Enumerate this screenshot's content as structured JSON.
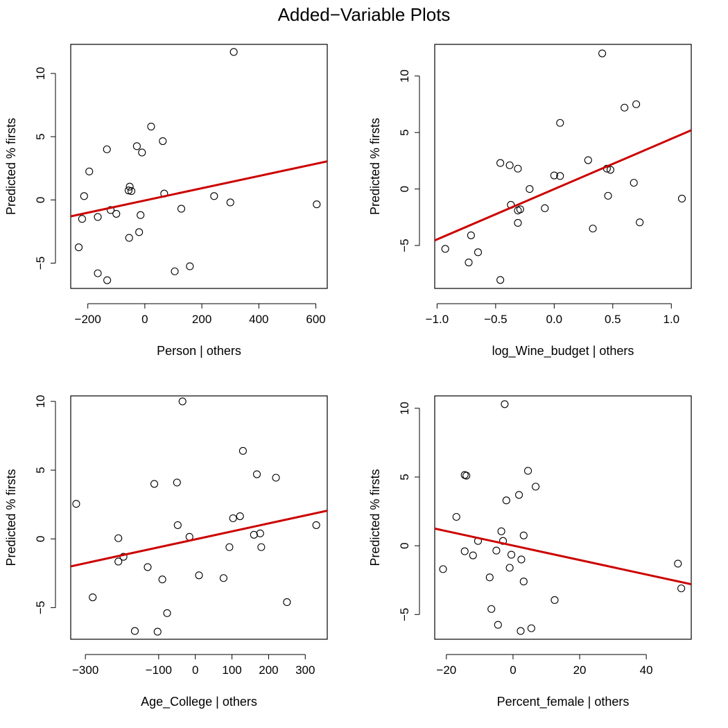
{
  "title": "Added−Variable Plots",
  "colors": {
    "fit_line": "#cc0000",
    "points": "#000000",
    "frame": "#000000"
  },
  "chart_data": [
    {
      "type": "scatter",
      "xlabel": "Person | others",
      "ylabel": "Predicted % firsts",
      "xlim": [
        -260,
        640
      ],
      "ylim": [
        -7.0,
        12.3
      ],
      "xticks": [
        -200,
        0,
        200,
        400,
        600
      ],
      "xtick_labels": [
        "−200",
        "0",
        "200",
        "400",
        "600"
      ],
      "yticks": [
        -5,
        0,
        5,
        10
      ],
      "ytick_labels": [
        "−5",
        "0",
        "5",
        "10"
      ],
      "points": [
        [
          312,
          11.7
        ],
        [
          22,
          5.8
        ],
        [
          -133,
          4.0
        ],
        [
          -28,
          4.25
        ],
        [
          63,
          4.65
        ],
        [
          -10,
          3.75
        ],
        [
          -195,
          2.25
        ],
        [
          -213,
          0.3
        ],
        [
          -53,
          1.05
        ],
        [
          -57,
          0.75
        ],
        [
          -47,
          0.7
        ],
        [
          68,
          0.5
        ],
        [
          243,
          0.3
        ],
        [
          300,
          -0.2
        ],
        [
          603,
          -0.35
        ],
        [
          -120,
          -0.8
        ],
        [
          128,
          -0.7
        ],
        [
          -100,
          -1.1
        ],
        [
          -15,
          -1.2
        ],
        [
          -165,
          -1.35
        ],
        [
          -220,
          -1.5
        ],
        [
          -20,
          -2.55
        ],
        [
          -55,
          -3.0
        ],
        [
          -232,
          -3.75
        ],
        [
          158,
          -5.25
        ],
        [
          105,
          -5.65
        ],
        [
          -165,
          -5.8
        ],
        [
          -132,
          -6.35
        ]
      ],
      "fit": {
        "x": [
          -260,
          640
        ],
        "y": [
          -1.3,
          3.05
        ]
      }
    },
    {
      "type": "scatter",
      "xlabel": "log_Wine_budget | others",
      "ylabel": "Predicted % firsts",
      "xlim": [
        -1.02,
        1.17
      ],
      "ylim": [
        -8.8,
        12.8
      ],
      "xticks": [
        -1.0,
        -0.5,
        0.0,
        0.5,
        1.0
      ],
      "xtick_labels": [
        "−1.0",
        "−0.5",
        "0.0",
        "0.5",
        "1.0"
      ],
      "yticks": [
        -5,
        0,
        5,
        10
      ],
      "ytick_labels": [
        "−5",
        "0",
        "5",
        "10"
      ],
      "points": [
        [
          0.41,
          12.0
        ],
        [
          0.7,
          7.5
        ],
        [
          0.6,
          7.2
        ],
        [
          0.05,
          5.85
        ],
        [
          -0.46,
          2.3
        ],
        [
          -0.38,
          2.1
        ],
        [
          -0.31,
          1.8
        ],
        [
          0.29,
          2.55
        ],
        [
          0.45,
          1.8
        ],
        [
          0.48,
          1.7
        ],
        [
          0.0,
          1.2
        ],
        [
          0.05,
          1.15
        ],
        [
          -0.21,
          0.0
        ],
        [
          0.68,
          0.55
        ],
        [
          0.46,
          -0.6
        ],
        [
          1.09,
          -0.85
        ],
        [
          -0.37,
          -1.4
        ],
        [
          -0.29,
          -1.8
        ],
        [
          -0.31,
          -1.9
        ],
        [
          -0.08,
          -1.7
        ],
        [
          -0.31,
          -3.0
        ],
        [
          0.33,
          -3.5
        ],
        [
          0.73,
          -2.95
        ],
        [
          -0.71,
          -4.1
        ],
        [
          -0.93,
          -5.3
        ],
        [
          -0.65,
          -5.6
        ],
        [
          -0.73,
          -6.5
        ],
        [
          -0.46,
          -8.05
        ]
      ],
      "fit": {
        "x": [
          -1.02,
          1.17
        ],
        "y": [
          -4.55,
          5.2
        ]
      }
    },
    {
      "type": "scatter",
      "xlabel": "Age_College | others",
      "ylabel": "Predicted % firsts",
      "xlim": [
        -340,
        360
      ],
      "ylim": [
        -7.3,
        10.4
      ],
      "xticks": [
        -300,
        -100,
        0,
        100,
        200,
        300
      ],
      "xtick_labels": [
        "−300",
        "−100",
        "0",
        "100",
        "200",
        "300"
      ],
      "yticks": [
        -5,
        0,
        5,
        10
      ],
      "ytick_labels": [
        "−5",
        "0",
        "5",
        "10"
      ],
      "points": [
        [
          -35,
          10.0
        ],
        [
          130,
          6.4
        ],
        [
          168,
          4.7
        ],
        [
          220,
          4.45
        ],
        [
          -112,
          4.0
        ],
        [
          -50,
          4.1
        ],
        [
          -325,
          2.55
        ],
        [
          122,
          1.65
        ],
        [
          103,
          1.5
        ],
        [
          -48,
          1.0
        ],
        [
          330,
          1.0
        ],
        [
          -16,
          0.15
        ],
        [
          177,
          0.4
        ],
        [
          160,
          0.3
        ],
        [
          -210,
          0.05
        ],
        [
          -196,
          -1.3
        ],
        [
          -210,
          -1.65
        ],
        [
          93,
          -0.6
        ],
        [
          180,
          -0.6
        ],
        [
          -130,
          -2.05
        ],
        [
          10,
          -2.65
        ],
        [
          77,
          -2.85
        ],
        [
          -90,
          -2.95
        ],
        [
          -280,
          -4.25
        ],
        [
          250,
          -4.6
        ],
        [
          -77,
          -5.4
        ],
        [
          -165,
          -6.7
        ],
        [
          -103,
          -6.75
        ]
      ],
      "fit": {
        "x": [
          -340,
          360
        ],
        "y": [
          -2.0,
          2.05
        ]
      }
    },
    {
      "type": "scatter",
      "xlabel": "Percent_female | others",
      "ylabel": "Predicted % firsts",
      "xlim": [
        -23.5,
        53.5
      ],
      "ylim": [
        -6.8,
        10.9
      ],
      "xticks": [
        -20,
        0,
        20,
        40
      ],
      "xtick_labels": [
        "−20",
        "0",
        "20",
        "40"
      ],
      "yticks": [
        -5,
        0,
        5,
        10
      ],
      "ytick_labels": [
        "−5",
        "0",
        "5",
        "10"
      ],
      "points": [
        [
          -2.5,
          10.3
        ],
        [
          -14.5,
          5.15
        ],
        [
          -14.0,
          5.1
        ],
        [
          4.5,
          5.45
        ],
        [
          6.8,
          4.3
        ],
        [
          1.8,
          3.7
        ],
        [
          -2.0,
          3.3
        ],
        [
          -17.0,
          2.1
        ],
        [
          -3.5,
          1.05
        ],
        [
          -10.5,
          0.35
        ],
        [
          -3.0,
          0.35
        ],
        [
          3.2,
          0.75
        ],
        [
          -14.5,
          -0.4
        ],
        [
          -12.0,
          -0.7
        ],
        [
          -5.0,
          -0.35
        ],
        [
          -0.5,
          -0.65
        ],
        [
          2.5,
          -1.0
        ],
        [
          -1.0,
          -1.6
        ],
        [
          -21.0,
          -1.7
        ],
        [
          -7.0,
          -2.3
        ],
        [
          3.2,
          -2.6
        ],
        [
          49.5,
          -1.3
        ],
        [
          50.5,
          -3.1
        ],
        [
          12.5,
          -3.95
        ],
        [
          -6.5,
          -4.6
        ],
        [
          -4.5,
          -5.75
        ],
        [
          5.5,
          -6.0
        ],
        [
          2.3,
          -6.2
        ]
      ],
      "fit": {
        "x": [
          -23.5,
          53.5
        ],
        "y": [
          1.25,
          -2.8
        ]
      }
    }
  ]
}
